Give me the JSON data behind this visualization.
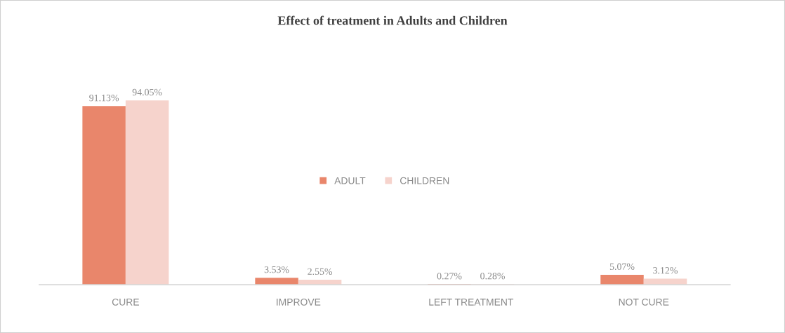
{
  "chart_data": {
    "type": "bar",
    "title": "Effect of treatment in Adults and Children",
    "categories": [
      "CURE",
      "IMPROVE",
      "LEFT TREATMENT",
      "NOT CURE"
    ],
    "series": [
      {
        "name": "ADULT",
        "color": "#e9866b",
        "values": [
          91.13,
          3.53,
          0.27,
          5.07
        ],
        "value_labels": [
          "91.13%",
          "3.53%",
          "0.27%",
          "5.07%"
        ]
      },
      {
        "name": "CHILDREN",
        "color": "#f6d3cc",
        "values": [
          94.05,
          2.55,
          0.28,
          3.12
        ],
        "value_labels": [
          "94.05%",
          "2.55%",
          "0.28%",
          "3.12%"
        ]
      }
    ],
    "legend": "center",
    "grid": false,
    "tick_labels": "x"
  }
}
